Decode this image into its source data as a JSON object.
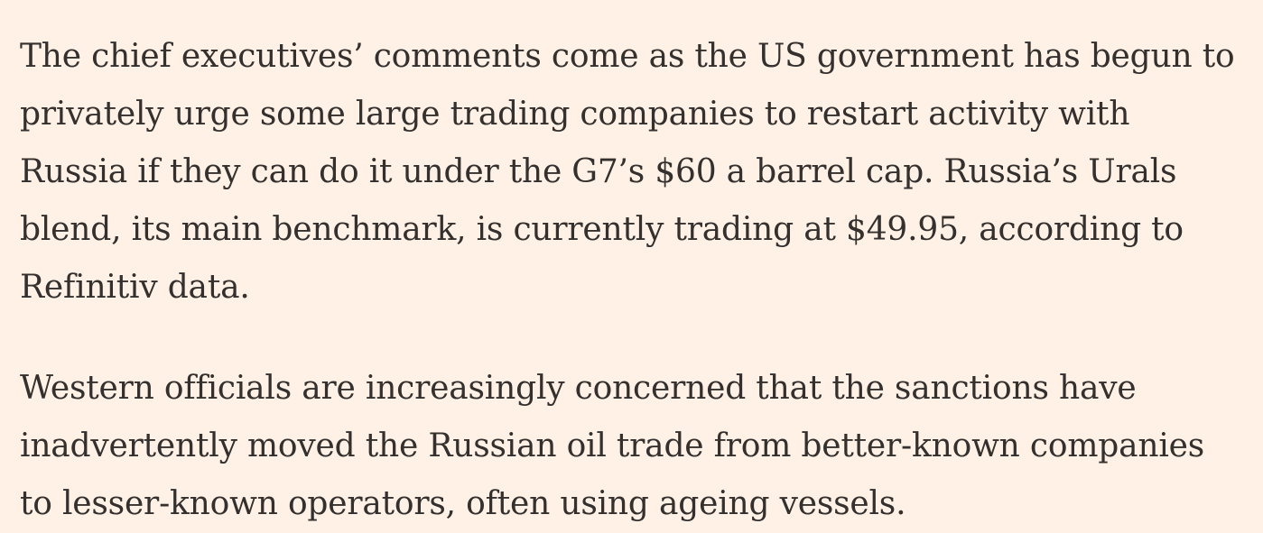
{
  "article": {
    "paragraphs": [
      "The chief executives’ comments come as the US government has begun to privately urge some large trading companies to restart activity with Russia if they can do it under the G7’s $60 a barrel cap. Russia’s Urals blend, its main benchmark, is currently trading at $49.95, according to Refinitiv data.",
      "Western officials are increasingly concerned that the sanctions have inadvertently moved the Russian oil trade from better-known companies to lesser-known operators, often using ageing vessels."
    ]
  }
}
